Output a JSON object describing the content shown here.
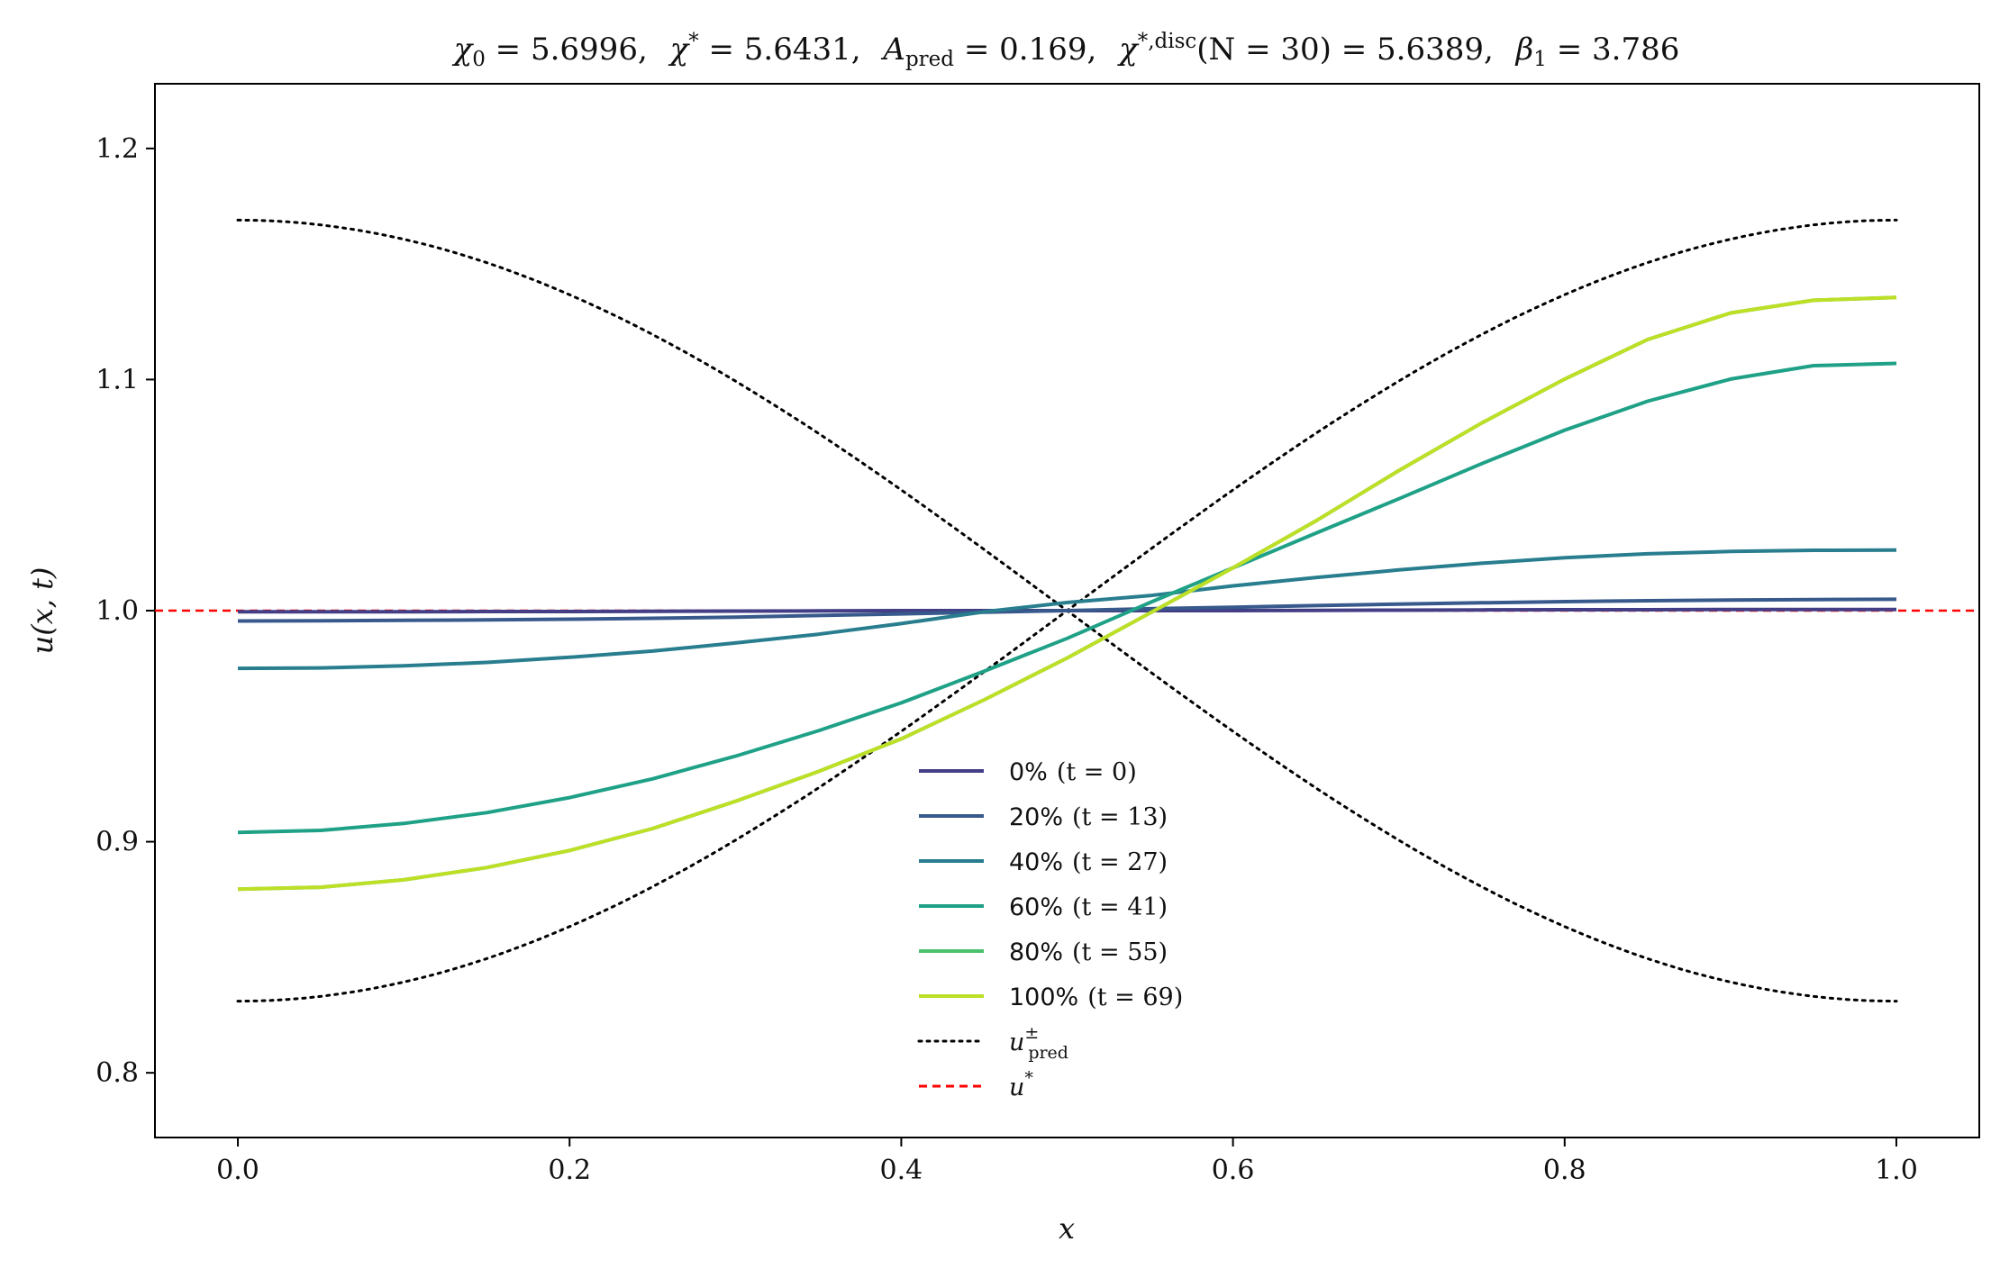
{
  "chart_data": {
    "type": "line",
    "title": "χ₀ = 5.6996,  χ* = 5.6431,  A_pred = 0.169,  χ*,disc(N = 30) = 5.6389,  β₁ = 3.786",
    "xlabel": "x",
    "ylabel": "u(x, t)",
    "xlim": [
      -0.05,
      1.05
    ],
    "ylim": [
      0.772,
      1.228
    ],
    "xticks": [
      0.0,
      0.2,
      0.4,
      0.6,
      0.8,
      1.0
    ],
    "xtick_labels": [
      "0.0",
      "0.2",
      "0.4",
      "0.6",
      "0.8",
      "1.0"
    ],
    "yticks": [
      0.8,
      0.9,
      1.0,
      1.1,
      1.2
    ],
    "ytick_labels": [
      "0.8",
      "0.9",
      "1.0",
      "1.1",
      "1.2"
    ],
    "grid": false,
    "legend_position": "lower-center",
    "x": [
      0.0,
      0.05,
      0.1,
      0.15,
      0.2,
      0.25,
      0.3,
      0.35,
      0.4,
      0.45,
      0.5,
      0.55,
      0.6,
      0.65,
      0.7,
      0.75,
      0.8,
      0.85,
      0.9,
      0.95,
      1.0
    ],
    "series": [
      {
        "name": "0% (t = 0)",
        "color": "#433e85",
        "style": "solid",
        "values": [
          0.9995,
          0.9995,
          0.9995,
          0.9996,
          0.9996,
          0.9997,
          0.9998,
          0.9999,
          1.0,
          1.0,
          1.0,
          1.0,
          1.0,
          1.0001,
          1.0002,
          1.0003,
          1.0004,
          1.0004,
          1.0005,
          1.0005,
          1.0005
        ]
      },
      {
        "name": "20% (t = 13)",
        "color": "#38598c",
        "style": "solid",
        "values": [
          0.9955,
          0.9956,
          0.9958,
          0.996,
          0.9963,
          0.9967,
          0.9972,
          0.9979,
          0.9986,
          0.9993,
          1.0,
          1.0008,
          1.0015,
          1.0022,
          1.0028,
          1.0034,
          1.0039,
          1.0043,
          1.0046,
          1.0048,
          1.0049
        ]
      },
      {
        "name": "40% (t = 27)",
        "color": "#287d8e",
        "style": "solid",
        "values": [
          0.975,
          0.9752,
          0.9761,
          0.9776,
          0.9798,
          0.9825,
          0.986,
          0.9898,
          0.9944,
          0.9995,
          1.0035,
          1.0065,
          1.0107,
          1.0143,
          1.0176,
          1.0205,
          1.0229,
          1.0246,
          1.0256,
          1.0261,
          1.0262
        ]
      },
      {
        "name": "60% (t = 41)",
        "color": "#1fa187",
        "style": "solid",
        "values": [
          0.904,
          0.9049,
          0.9079,
          0.9126,
          0.9191,
          0.9272,
          0.937,
          0.948,
          0.9601,
          0.9738,
          0.988,
          1.0035,
          1.0185,
          1.0335,
          1.0484,
          1.0636,
          1.0781,
          1.0906,
          1.1002,
          1.106,
          1.107
        ]
      },
      {
        "name": "80% (t = 55)",
        "color": "#4ac16d",
        "style": "solid",
        "values": [
          0.8795,
          0.8803,
          0.8835,
          0.8888,
          0.8962,
          0.9057,
          0.9175,
          0.9304,
          0.9445,
          0.9614,
          0.9795,
          0.999,
          1.0185,
          1.0388,
          1.0606,
          1.0812,
          1.1002,
          1.1173,
          1.1288,
          1.1343,
          1.1355
        ]
      },
      {
        "name": "100% (t = 69)",
        "color": "#bddf26",
        "style": "solid",
        "values": [
          0.8795,
          0.8803,
          0.8835,
          0.8888,
          0.8962,
          0.9057,
          0.9175,
          0.9304,
          0.9445,
          0.9614,
          0.9795,
          0.999,
          1.0185,
          1.0388,
          1.0606,
          1.0812,
          1.1002,
          1.1173,
          1.1288,
          1.1343,
          1.1355
        ]
      },
      {
        "name": "u±pred",
        "color": "#000000",
        "style": "dotted",
        "formula": "u± = 1 ± 0.169·cos(πx)"
      },
      {
        "name": "u*",
        "color": "#ff0000",
        "style": "dashed",
        "value": 1.0
      }
    ]
  },
  "legend": {
    "items": [
      {
        "pct": "0%",
        "tparen": "(t = 0)",
        "color": "#433e85",
        "style": "solid"
      },
      {
        "pct": "20%",
        "tparen": "(t = 13)",
        "color": "#38598c",
        "style": "solid"
      },
      {
        "pct": "40%",
        "tparen": "(t = 27)",
        "color": "#287d8e",
        "style": "solid"
      },
      {
        "pct": "60%",
        "tparen": "(t = 41)",
        "color": "#1fa187",
        "style": "solid"
      },
      {
        "pct": "80%",
        "tparen": "(t = 55)",
        "color": "#4ac16d",
        "style": "solid"
      },
      {
        "pct": "100%",
        "tparen": "(t = 69)",
        "color": "#bddf26",
        "style": "solid"
      },
      {
        "pct": "u",
        "tparen": "",
        "sup": "±",
        "sub": "pred",
        "color": "#000000",
        "style": "dotted"
      },
      {
        "pct": "u",
        "tparen": "",
        "sup": "*",
        "sub": "",
        "color": "#ff0000",
        "style": "dashed"
      }
    ]
  },
  "title_parts": {
    "chi0_sym": "χ",
    "chi0_sub": "0",
    "chi0_val": " = 5.6996,",
    "chistar_sym": "χ",
    "chistar_sup": "*",
    "chistar_val": " = 5.6431,",
    "apred_sym": "A",
    "apred_sub": "pred",
    "apred_val": " = 0.169,",
    "chidisc_sym": "χ",
    "chidisc_sup": "*,disc",
    "chidisc_val": "(N = 30) = 5.6389,",
    "beta_sym": "β",
    "beta_sub": "1",
    "beta_val": " = 3.786"
  },
  "amplitude": 0.169
}
